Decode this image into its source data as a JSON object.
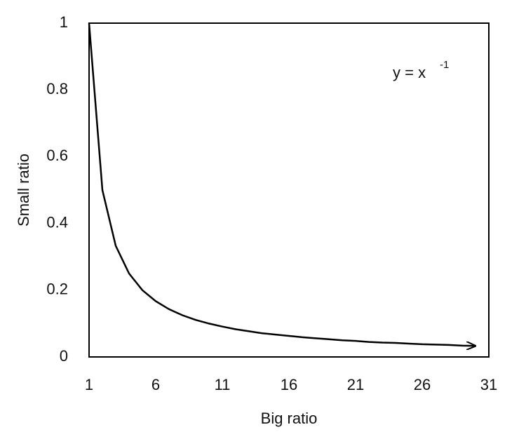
{
  "chart_data": {
    "type": "line",
    "x_label": "Big ratio",
    "y_label": "Small ratio",
    "annotation": {
      "base": "y = x",
      "superscript": "-1"
    },
    "x": [
      1,
      2,
      3,
      4,
      5,
      6,
      7,
      8,
      9,
      10,
      11,
      12,
      13,
      14,
      15,
      16,
      17,
      18,
      19,
      20,
      21,
      22,
      23,
      24,
      25,
      26,
      27,
      28,
      29,
      30
    ],
    "values": [
      1,
      0.5,
      0.333,
      0.25,
      0.2,
      0.167,
      0.143,
      0.125,
      0.111,
      0.1,
      0.091,
      0.083,
      0.077,
      0.071,
      0.067,
      0.063,
      0.059,
      0.056,
      0.053,
      0.05,
      0.048,
      0.045,
      0.043,
      0.042,
      0.04,
      0.038,
      0.037,
      0.036,
      0.034,
      0.033
    ],
    "color": "#000000",
    "xlim": [
      1,
      31
    ],
    "xticks": [
      1,
      6,
      11,
      16,
      21,
      26,
      31
    ],
    "ylim": [
      0,
      1
    ],
    "yticks": [
      0,
      0.2,
      0.4,
      0.6,
      0.8,
      1
    ]
  }
}
